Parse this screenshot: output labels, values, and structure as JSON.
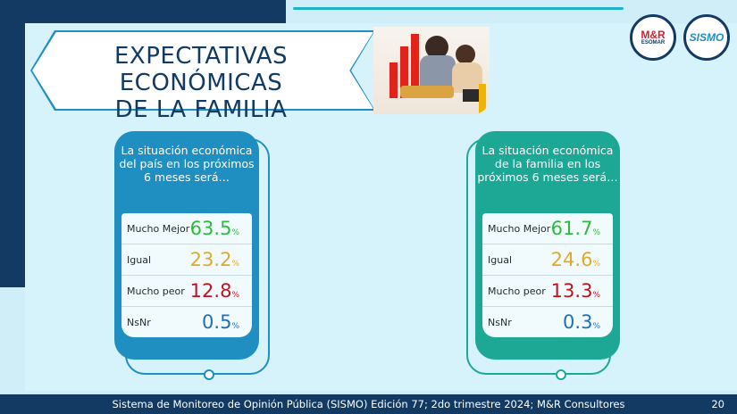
{
  "title": {
    "line1": "EXPECTATIVAS ECONÓMICAS",
    "line2": "DE LA FAMILIA"
  },
  "logos": {
    "mr": "M&R",
    "esomar": "ESOMAR",
    "sismo": "SISMO"
  },
  "panels": [
    {
      "heading": "La situación económica del país en los próximos 6 meses será…",
      "color": "#1f8ec0",
      "rows": [
        {
          "label": "Mucho Mejor",
          "value": "63.5",
          "pct": "%",
          "color": "#2dbb3a"
        },
        {
          "label": "Igual",
          "value": "23.2",
          "pct": "%",
          "color": "#e0a92a"
        },
        {
          "label": "Mucho peor",
          "value": "12.8",
          "pct": "%",
          "color": "#c4111f"
        },
        {
          "label": "NsNr",
          "value": "0.5",
          "pct": "%",
          "color": "#1f6fb5"
        }
      ]
    },
    {
      "heading": "La situación económica de la familia en los próximos 6 meses será…",
      "color": "#1ca895",
      "rows": [
        {
          "label": "Mucho Mejor",
          "value": "61.7",
          "pct": "%",
          "color": "#2dbb3a"
        },
        {
          "label": "Igual",
          "value": "24.6",
          "pct": "%",
          "color": "#e0a92a"
        },
        {
          "label": "Mucho peor",
          "value": "13.3",
          "pct": "%",
          "color": "#c4111f"
        },
        {
          "label": "NsNr",
          "value": "0.3",
          "pct": "%",
          "color": "#1f6fb5"
        }
      ]
    }
  ],
  "footer": {
    "text": "Sistema de Monitoreo de Opinión Pública (SISMO) Edición 77; 2do trimestre 2024; M&R Consultores",
    "page": "20"
  }
}
